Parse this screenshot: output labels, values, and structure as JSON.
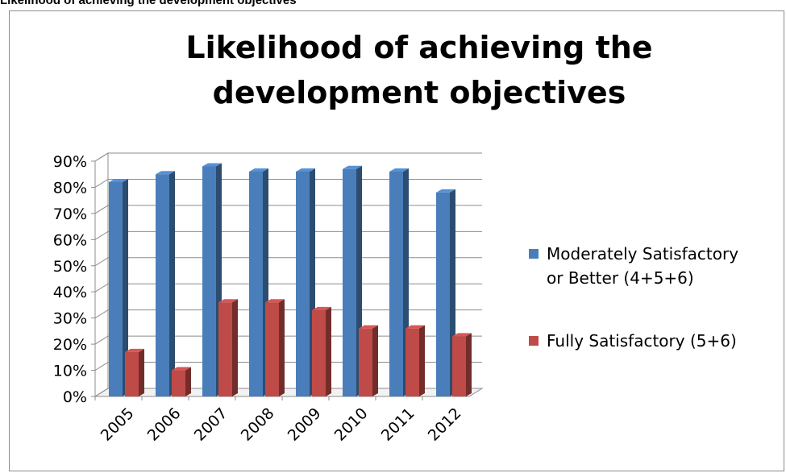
{
  "caption": "Likelihood of achieving the development objectives",
  "chart_data": {
    "type": "bar",
    "title_lines": [
      "Likelihood of achieving the",
      "development objectives"
    ],
    "categories": [
      "2005",
      "2006",
      "2007",
      "2008",
      "2009",
      "2010",
      "2011",
      "2012"
    ],
    "series": [
      {
        "name": "Moderately Satisfactory or Better (4+5+6)",
        "name_lines": [
          "Moderately Satisfactory",
          "or Better (4+5+6)"
        ],
        "color": "#4a7ebb",
        "values": [
          82,
          85,
          88,
          86,
          86,
          87,
          86,
          78
        ]
      },
      {
        "name": "Fully Satisfactory (5+6)",
        "name_lines": [
          "Fully Satisfactory (5+6)"
        ],
        "color": "#be4b48",
        "values": [
          17,
          10,
          36,
          36,
          33,
          26,
          26,
          23
        ]
      }
    ],
    "ylim": [
      0,
      90
    ],
    "yticks": [
      "0%",
      "10%",
      "20%",
      "30%",
      "40%",
      "50%",
      "60%",
      "70%",
      "80%",
      "90%"
    ],
    "grid": true,
    "legend_position": "right",
    "style": "3d-clustered-column"
  }
}
